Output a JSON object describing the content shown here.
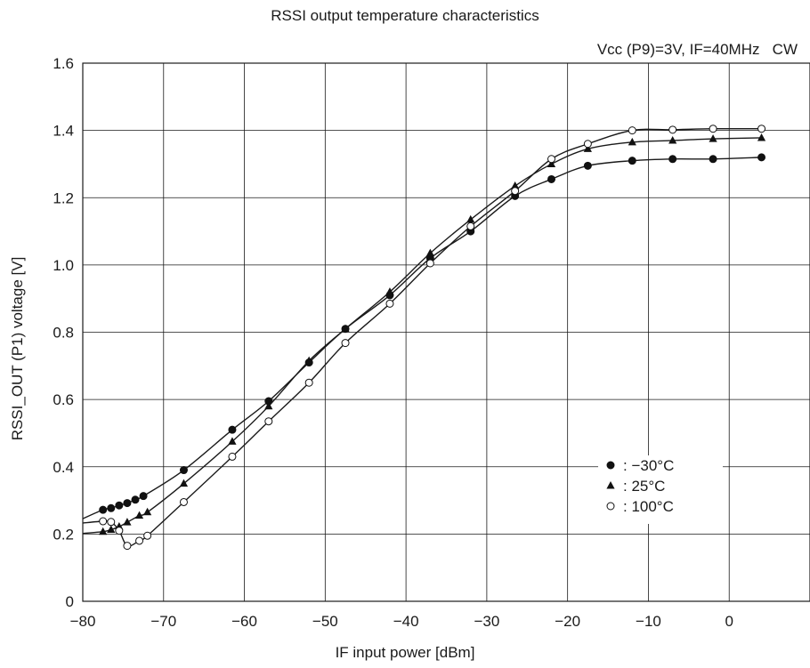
{
  "chart_data": {
    "type": "line",
    "title": "RSSI output temperature characteristics",
    "subtitle": "Vcc (P9)=3V, IF=40MHz   CW",
    "xlabel": "IF input power [dBm]",
    "ylabel": "RSSI_OUT (P1) voltage [V]",
    "xlim": [
      -80,
      10
    ],
    "ylim": [
      0,
      1.6
    ],
    "x_ticks": [
      "-80",
      "-70",
      "-60",
      "-50",
      "-40",
      "-30",
      "-20",
      "-10",
      "0"
    ],
    "y_ticks": [
      "0",
      "0.2",
      "0.4",
      "0.6",
      "0.8",
      "1.0",
      "1.2",
      "1.4",
      "1.6"
    ],
    "grid": true,
    "legend_position": "lower-right",
    "series": [
      {
        "name": ": −30°C",
        "marker": "filled-circle",
        "x": [
          -77.5,
          -76.5,
          -75.5,
          -74.5,
          -73.5,
          -72.5,
          -67.5,
          -61.5,
          -57,
          -52,
          -47.5,
          -42,
          -37,
          -32,
          -26.5,
          -22,
          -17.5,
          -12,
          -7,
          -2,
          4
        ],
        "y": [
          0.272,
          0.277,
          0.285,
          0.292,
          0.302,
          0.313,
          0.39,
          0.51,
          0.595,
          0.71,
          0.81,
          0.91,
          1.02,
          1.1,
          1.205,
          1.255,
          1.295,
          1.31,
          1.315,
          1.315,
          1.32
        ]
      },
      {
        "name": ": 25°C",
        "marker": "filled-triangle",
        "x": [
          -77.5,
          -76.5,
          -75.5,
          -74.5,
          -73,
          -72,
          -67.5,
          -61.5,
          -57,
          -52,
          -47.5,
          -42,
          -37,
          -32,
          -26.5,
          -22,
          -17.5,
          -12,
          -7,
          -2,
          4
        ],
        "y": [
          0.207,
          0.213,
          0.222,
          0.235,
          0.255,
          0.265,
          0.35,
          0.475,
          0.58,
          0.715,
          0.81,
          0.92,
          1.035,
          1.135,
          1.235,
          1.3,
          1.345,
          1.365,
          1.37,
          1.375,
          1.378
        ]
      },
      {
        "name": ": 100°C",
        "marker": "open-circle",
        "x": [
          -77.5,
          -76.5,
          -75.5,
          -74.5,
          -73,
          -72,
          -67.5,
          -61.5,
          -57,
          -52,
          -47.5,
          -42,
          -37,
          -32,
          -26.5,
          -22,
          -17.5,
          -12,
          -7,
          -2,
          4
        ],
        "y": [
          0.238,
          0.236,
          0.21,
          0.165,
          0.18,
          0.195,
          0.295,
          0.43,
          0.535,
          0.65,
          0.768,
          0.885,
          1.005,
          1.115,
          1.22,
          1.315,
          1.36,
          1.4,
          1.402,
          1.405,
          1.405
        ]
      }
    ]
  }
}
